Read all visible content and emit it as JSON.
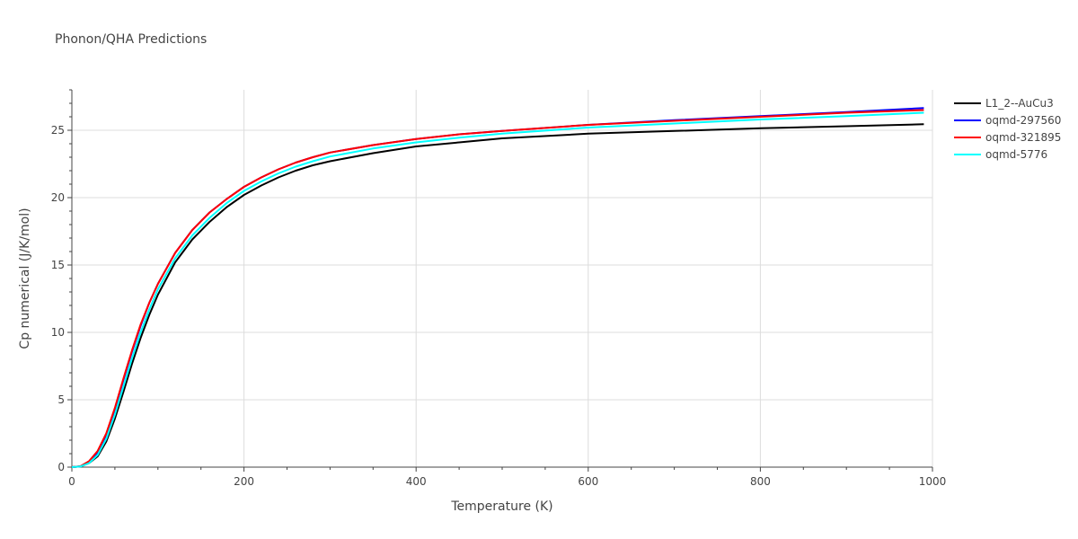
{
  "chart_data": {
    "type": "line",
    "title": "Phonon/QHA Predictions",
    "xlabel": "Temperature (K)",
    "ylabel": "Cp numerical (J/K/mol)",
    "xlim": [
      0,
      1000
    ],
    "ylim": [
      0,
      28
    ],
    "xticks": [
      0,
      200,
      400,
      600,
      800,
      1000
    ],
    "yticks": [
      0,
      5,
      10,
      15,
      20,
      25
    ],
    "grid": true,
    "legend_position": "top-right",
    "x": [
      0,
      10,
      20,
      30,
      40,
      50,
      60,
      70,
      80,
      90,
      100,
      120,
      140,
      160,
      180,
      200,
      220,
      240,
      260,
      280,
      300,
      350,
      400,
      450,
      500,
      600,
      700,
      800,
      900,
      990
    ],
    "series": [
      {
        "name": "L1_2--AuCu3",
        "color": "#000000",
        "values": [
          0,
          0.05,
          0.3,
          0.8,
          1.9,
          3.6,
          5.6,
          7.7,
          9.6,
          11.3,
          12.8,
          15.2,
          16.9,
          18.2,
          19.3,
          20.2,
          20.9,
          21.5,
          22.0,
          22.4,
          22.7,
          23.3,
          23.8,
          24.1,
          24.4,
          24.75,
          24.95,
          25.15,
          25.3,
          25.45
        ]
      },
      {
        "name": "oqmd-297560",
        "color": "#0000ff",
        "values": [
          0,
          0.06,
          0.4,
          1.1,
          2.4,
          4.3,
          6.5,
          8.6,
          10.5,
          12.2,
          13.6,
          15.9,
          17.6,
          18.9,
          19.9,
          20.8,
          21.5,
          22.1,
          22.6,
          23.0,
          23.35,
          23.9,
          24.35,
          24.7,
          24.95,
          25.4,
          25.75,
          26.05,
          26.35,
          26.65
        ]
      },
      {
        "name": "oqmd-321895",
        "color": "#ff0000",
        "values": [
          0,
          0.07,
          0.45,
          1.2,
          2.5,
          4.4,
          6.6,
          8.7,
          10.6,
          12.2,
          13.6,
          15.9,
          17.6,
          18.9,
          19.9,
          20.8,
          21.5,
          22.1,
          22.6,
          23.0,
          23.35,
          23.9,
          24.35,
          24.7,
          24.95,
          25.4,
          25.7,
          26.0,
          26.3,
          26.5
        ]
      },
      {
        "name": "oqmd-5776",
        "color": "#00ffff",
        "values": [
          0,
          0.05,
          0.3,
          0.9,
          2.1,
          3.9,
          6.0,
          8.1,
          10.0,
          11.7,
          13.2,
          15.5,
          17.2,
          18.5,
          19.6,
          20.5,
          21.2,
          21.8,
          22.3,
          22.7,
          23.05,
          23.65,
          24.1,
          24.45,
          24.75,
          25.2,
          25.5,
          25.8,
          26.05,
          26.3
        ]
      }
    ]
  }
}
